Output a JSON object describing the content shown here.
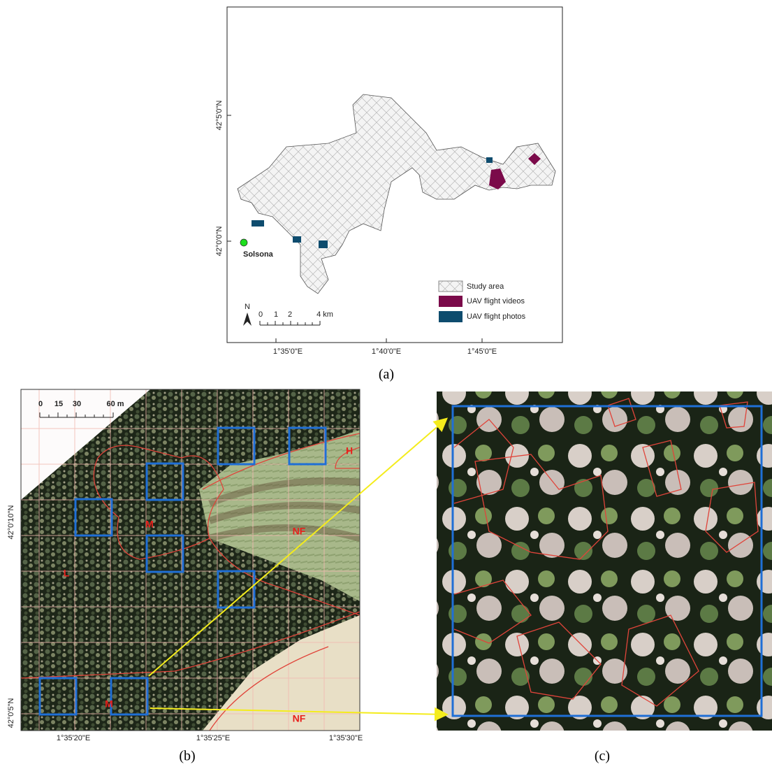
{
  "panel_a": {
    "lat_labels": [
      "42°5'0\"N",
      "42°0'0\"N"
    ],
    "lon_labels": [
      "1°35'0\"E",
      "1°40'0\"E",
      "1°45'0\"E"
    ],
    "place": "Solsona",
    "legend": [
      "Study area",
      "UAV flight videos",
      "UAV flight photos"
    ],
    "scale": {
      "north": "N",
      "labels": [
        "0",
        "1",
        "2",
        "4 km"
      ]
    },
    "caption": "(a)"
  },
  "panel_b": {
    "scale_labels": [
      "0",
      "15",
      "30",
      "60 m"
    ],
    "zone_labels": [
      "H",
      "M",
      "NF",
      "L",
      "M",
      "NF"
    ],
    "lat_labels": [
      "42°0'10\"N",
      "42°0'5\"N"
    ],
    "lon_labels": [
      "1°35'20\"E",
      "1°35'25\"E",
      "1°35'30\"E"
    ],
    "caption": "(b)"
  },
  "panel_c": {
    "caption": "(c)"
  }
}
